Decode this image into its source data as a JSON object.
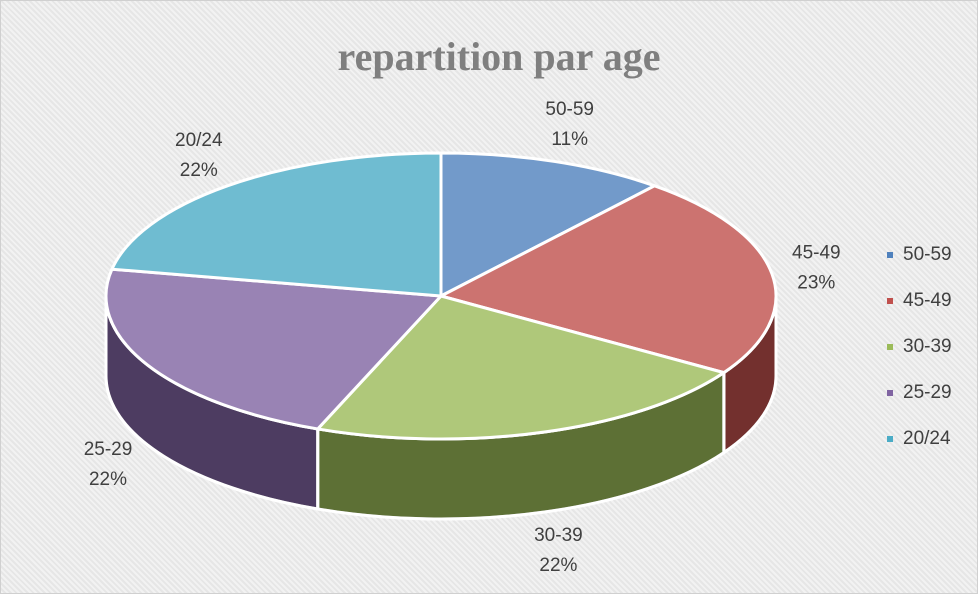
{
  "chart_data": {
    "type": "pie",
    "title": "repartition par age",
    "categories": [
      "50-59",
      "45-49",
      "30-39",
      "25-29",
      "20/24"
    ],
    "values": [
      11,
      23,
      22,
      22,
      22
    ],
    "value_labels": [
      "11%",
      "23%",
      "22%",
      "22%",
      "22%"
    ],
    "colors": [
      "#4f81bd",
      "#c0504d",
      "#9bbb59",
      "#8064a2",
      "#4bacc6"
    ],
    "legend": "right"
  }
}
